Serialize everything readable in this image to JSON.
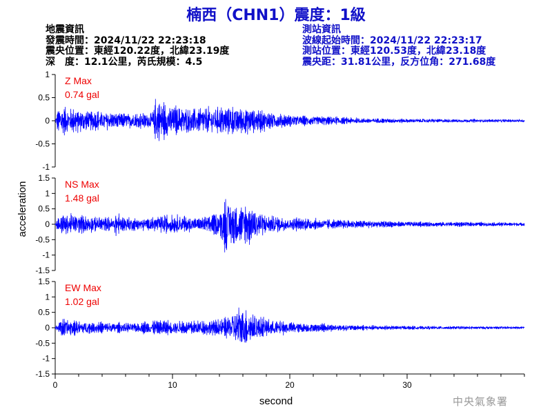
{
  "title": "楠西（CHN1）震度：1級",
  "earthquake_info": {
    "heading": "地震資訊",
    "origin_time": "發震時間：2024/11/22 22:23:18",
    "epicenter": "震央位置：東經120.22度，北緯23.19度",
    "depth_magnitude": "深　度：12.1公里，芮氏規模：4.5"
  },
  "station_info": {
    "heading": "測站資訊",
    "wave_start": "波線起始時間：2024/11/22 22:23:17",
    "location": "測站位置：東經120.53度，北緯23.18度",
    "distance": "震央距：31.81公里，反方位角：271.68度"
  },
  "watermark": "中央氣象署",
  "colors": {
    "trace": "#0000ff",
    "title": "#1010c8",
    "max_label": "#ee0000",
    "axis": "#000000"
  },
  "chart_data": {
    "type": "line",
    "xlabel": "second",
    "ylabel": "acceleration",
    "xlim": [
      0,
      40
    ],
    "xticks": [
      0,
      10,
      20,
      30
    ],
    "panels": [
      {
        "name": "Z",
        "max_label": "Z Max",
        "max_value": "0.74 gal",
        "ylim": [
          -1,
          1
        ],
        "yticks": [
          -1,
          -0.5,
          0,
          0.5,
          1
        ],
        "tick_labels": [
          "-1",
          "-0.5",
          "0",
          "0.5",
          "1"
        ],
        "envelope": [
          [
            0,
            0.02
          ],
          [
            0.2,
            0.3
          ],
          [
            0.5,
            0.45
          ],
          [
            1,
            0.4
          ],
          [
            2,
            0.35
          ],
          [
            3,
            0.3
          ],
          [
            4,
            0.28
          ],
          [
            5,
            0.25
          ],
          [
            6,
            0.23
          ],
          [
            7,
            0.22
          ],
          [
            8.2,
            0.25
          ],
          [
            8.6,
            0.65
          ],
          [
            9.2,
            0.55
          ],
          [
            10,
            0.45
          ],
          [
            11,
            0.4
          ],
          [
            12,
            0.38
          ],
          [
            13,
            0.4
          ],
          [
            14,
            0.38
          ],
          [
            15,
            0.45
          ],
          [
            16,
            0.4
          ],
          [
            17,
            0.35
          ],
          [
            18,
            0.28
          ],
          [
            19,
            0.22
          ],
          [
            20,
            0.18
          ],
          [
            21,
            0.16
          ],
          [
            22,
            0.14
          ],
          [
            24,
            0.12
          ],
          [
            26,
            0.08
          ],
          [
            28,
            0.07
          ],
          [
            30,
            0.06
          ],
          [
            35,
            0.05
          ],
          [
            40,
            0.04
          ]
        ]
      },
      {
        "name": "NS",
        "max_label": "NS Max",
        "max_value": "1.48 gal",
        "ylim": [
          -1.5,
          1.5
        ],
        "yticks": [
          -1.5,
          -1,
          -0.5,
          0,
          0.5,
          1,
          1.5
        ],
        "tick_labels": [
          "-1.5",
          "-1",
          "-0.5",
          "0",
          "0.5",
          "1",
          "1.5"
        ],
        "envelope": [
          [
            0,
            0.05
          ],
          [
            0.3,
            0.4
          ],
          [
            1,
            0.45
          ],
          [
            2,
            0.4
          ],
          [
            3,
            0.35
          ],
          [
            5,
            0.3
          ],
          [
            5.2,
            0.7
          ],
          [
            5.5,
            0.35
          ],
          [
            7,
            0.3
          ],
          [
            8,
            0.28
          ],
          [
            9,
            0.38
          ],
          [
            10,
            0.4
          ],
          [
            11,
            0.35
          ],
          [
            12,
            0.3
          ],
          [
            13,
            0.35
          ],
          [
            14,
            0.55
          ],
          [
            14.6,
            1.3
          ],
          [
            15,
            1.0
          ],
          [
            16,
            0.9
          ],
          [
            16.4,
            1.0
          ],
          [
            17,
            0.7
          ],
          [
            18,
            0.45
          ],
          [
            19,
            0.35
          ],
          [
            20,
            0.3
          ],
          [
            22,
            0.25
          ],
          [
            24,
            0.2
          ],
          [
            26,
            0.18
          ],
          [
            28,
            0.15
          ],
          [
            30,
            0.12
          ],
          [
            35,
            0.1
          ],
          [
            40,
            0.08
          ]
        ]
      },
      {
        "name": "EW",
        "max_label": "EW Max",
        "max_value": "1.02 gal",
        "ylim": [
          -1.5,
          1.5
        ],
        "yticks": [
          -1.5,
          -1,
          -0.5,
          0,
          0.5,
          1,
          1.5
        ],
        "tick_labels": [
          "-1.5",
          "-1",
          "-0.5",
          "0",
          "0.5",
          "1",
          "1.5"
        ],
        "envelope": [
          [
            0,
            0.05
          ],
          [
            0.3,
            0.3
          ],
          [
            0.6,
            0.5
          ],
          [
            1,
            0.35
          ],
          [
            2,
            0.3
          ],
          [
            3,
            0.28
          ],
          [
            5,
            0.22
          ],
          [
            7,
            0.2
          ],
          [
            8,
            0.3
          ],
          [
            9,
            0.4
          ],
          [
            10,
            0.3
          ],
          [
            12,
            0.3
          ],
          [
            13,
            0.35
          ],
          [
            14,
            0.4
          ],
          [
            15,
            0.6
          ],
          [
            15.6,
            1.0
          ],
          [
            16.2,
            0.85
          ],
          [
            17,
            0.55
          ],
          [
            18,
            0.4
          ],
          [
            19,
            0.3
          ],
          [
            20,
            0.25
          ],
          [
            22,
            0.2
          ],
          [
            24,
            0.15
          ],
          [
            26,
            0.12
          ],
          [
            28,
            0.1
          ],
          [
            30,
            0.08
          ],
          [
            35,
            0.07
          ],
          [
            40,
            0.05
          ]
        ]
      }
    ]
  }
}
